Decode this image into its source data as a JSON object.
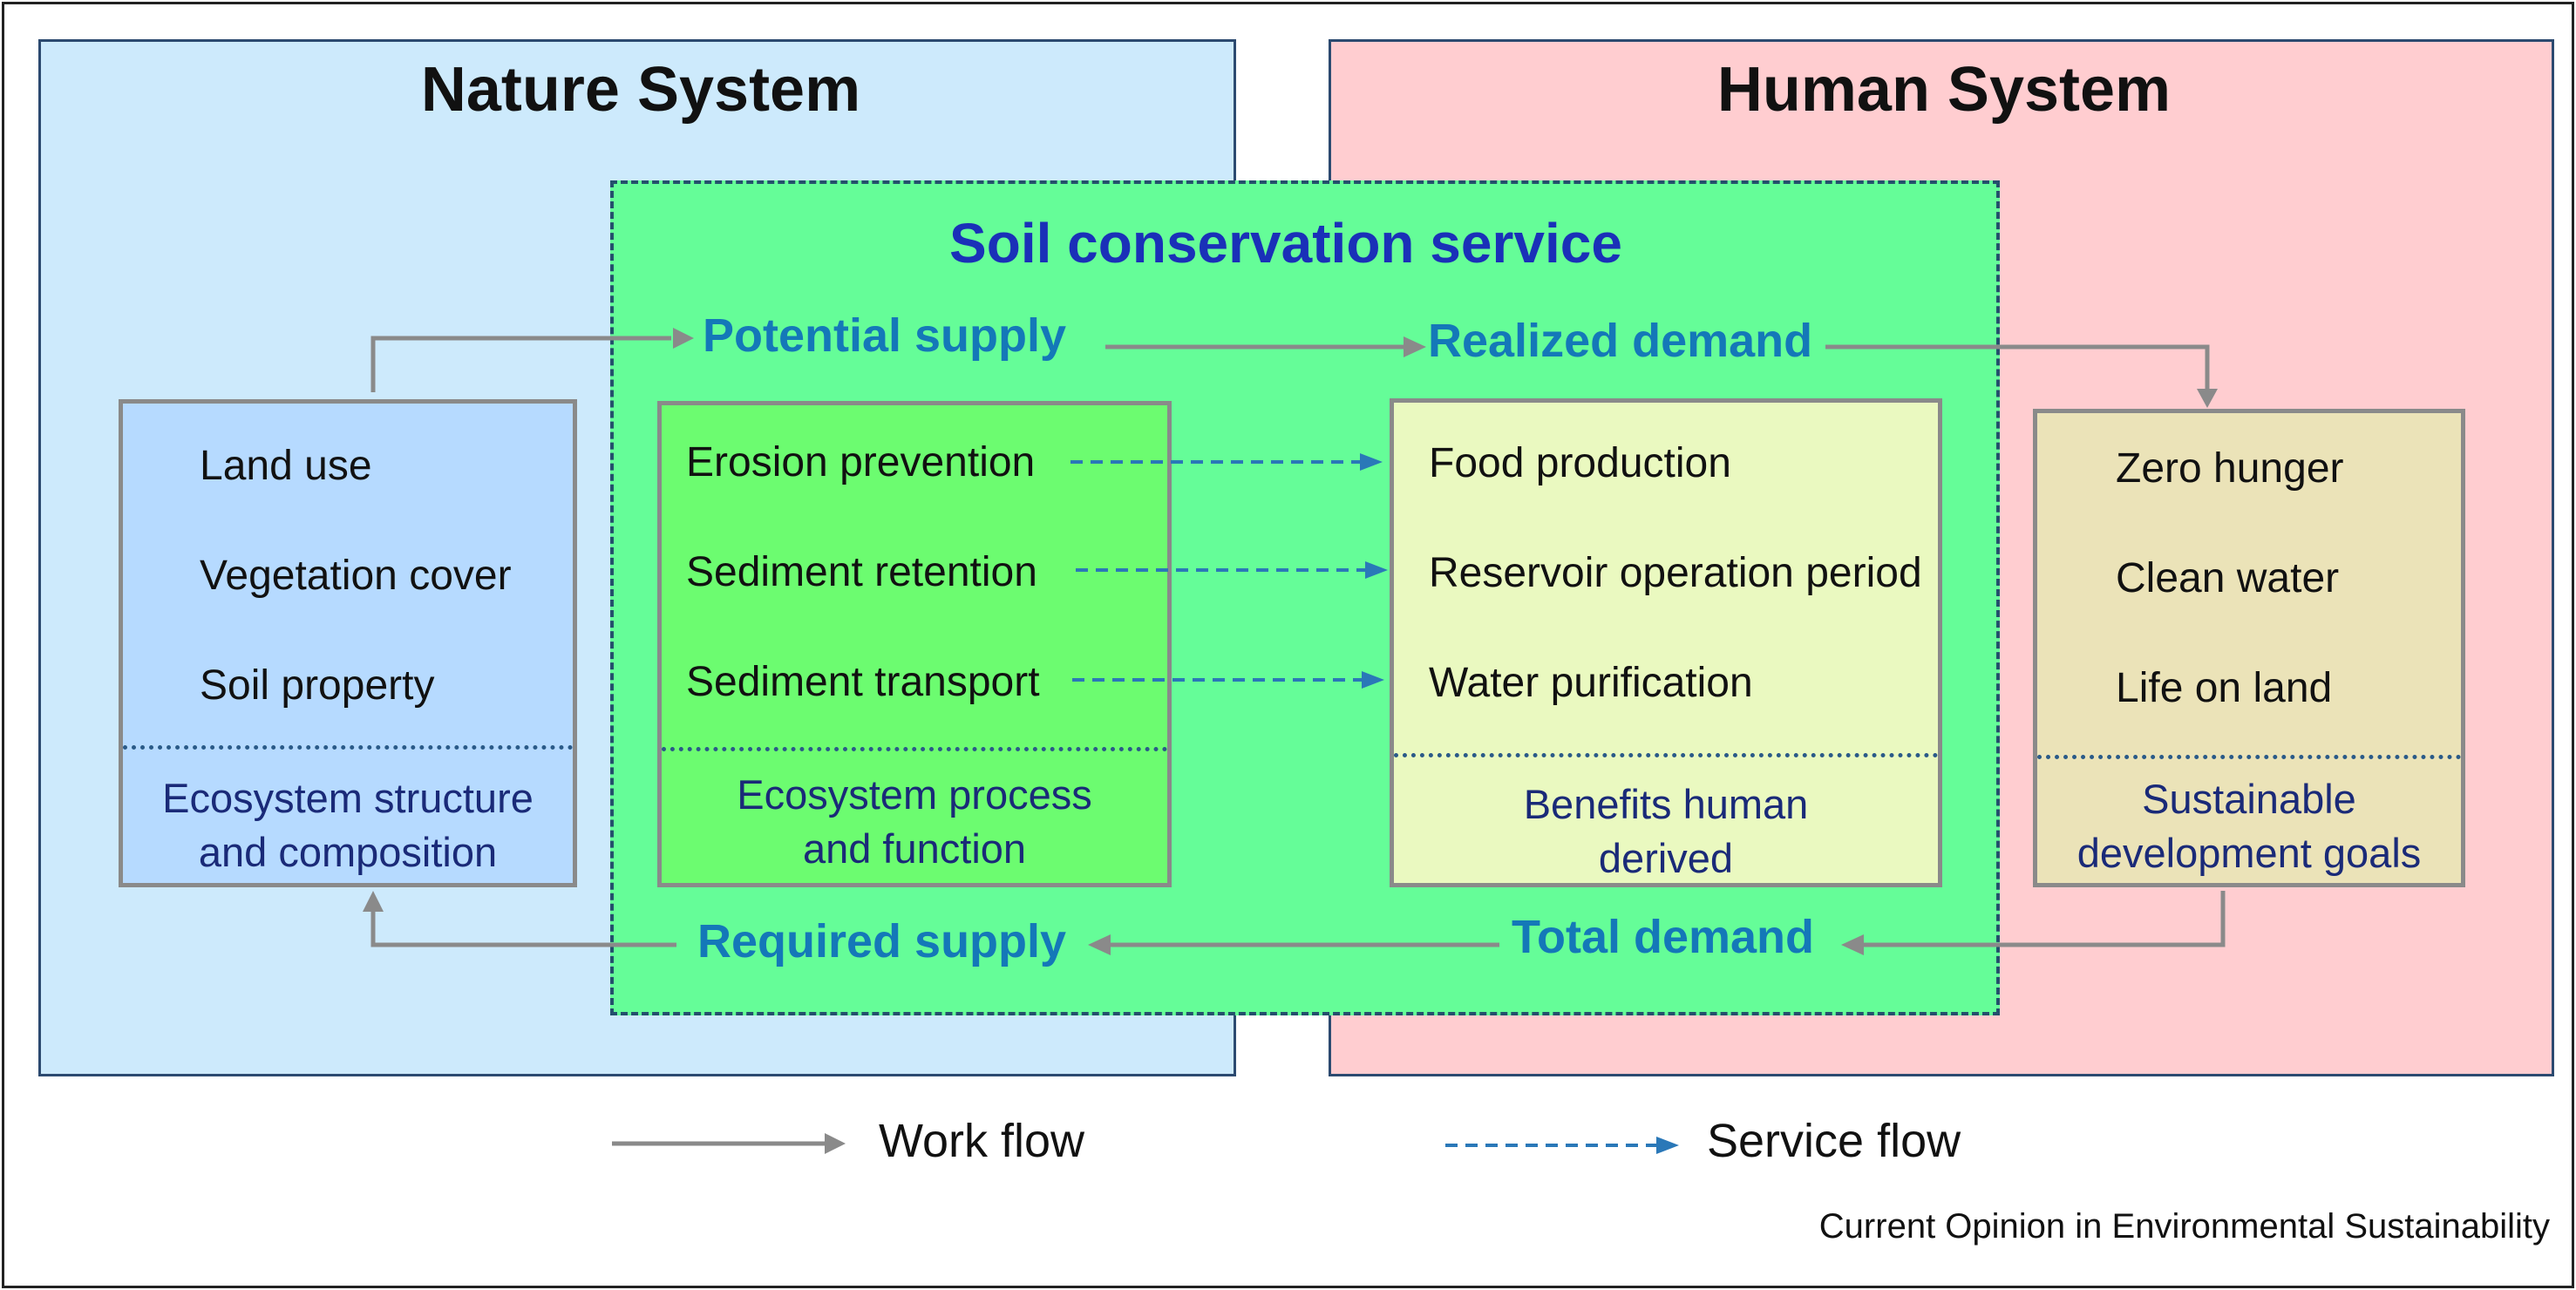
{
  "nature": {
    "title": "Nature System",
    "items": [
      "Land use",
      "Vegetation cover",
      "Soil property"
    ],
    "caption": [
      "Ecosystem structure",
      "and composition"
    ]
  },
  "human": {
    "title": "Human System",
    "items": [
      "Zero hunger",
      "Clean water",
      "Life on land"
    ],
    "caption": [
      "Sustainable",
      "development goals"
    ]
  },
  "soil": {
    "title": "Soil conservation service",
    "potential_supply": "Potential supply",
    "realized_demand": "Realized demand",
    "required_supply": "Required supply",
    "total_demand": "Total demand"
  },
  "process": {
    "items": [
      "Erosion prevention",
      "Sediment retention",
      "Sediment transport"
    ],
    "caption": [
      "Ecosystem process",
      "and function"
    ]
  },
  "benefits": {
    "items": [
      "Food production",
      "Reservoir operation period",
      "Water purification"
    ],
    "caption": [
      "Benefits human",
      "derived"
    ]
  },
  "legend": {
    "work_flow": "Work flow",
    "service_flow": "Service flow"
  },
  "source": "Current Opinion in Environmental Sustainability",
  "colors": {
    "nature_bg": "#cdeafc",
    "human_bg": "#ffcdd0",
    "soil_bg": "#65fd98",
    "work_flow": "#8a8a8a",
    "service_flow": "#2a78b8"
  }
}
